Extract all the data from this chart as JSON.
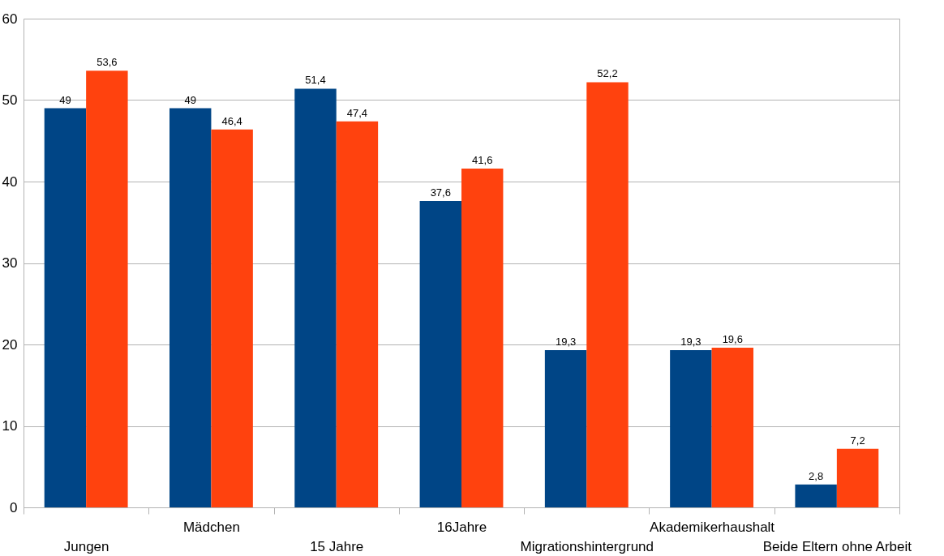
{
  "chart_data": {
    "type": "bar",
    "categories": [
      "Jungen",
      "Mädchen",
      "15 Jahre",
      "16Jahre",
      "Migrationshintergrund",
      "Akademikerhaushalt",
      "Beide Eltern ohne Arbeit"
    ],
    "series": [
      {
        "color": "#004586",
        "values": [
          49,
          49,
          51.4,
          37.6,
          19.3,
          19.3,
          2.8
        ],
        "value_labels": [
          "49",
          "49",
          "51,4",
          "37,6",
          "19,3",
          "19,3",
          "2,8"
        ]
      },
      {
        "color": "#ff420e",
        "values": [
          53.6,
          46.4,
          47.4,
          41.6,
          52.2,
          19.6,
          7.2
        ],
        "value_labels": [
          "53,6",
          "46,4",
          "47,4",
          "41,6",
          "52,2",
          "19,6",
          "7,2"
        ]
      }
    ],
    "ylim": [
      0,
      60
    ],
    "yticks": [
      0,
      10,
      20,
      30,
      40,
      50,
      60
    ],
    "grid": "y",
    "legend": false
  }
}
